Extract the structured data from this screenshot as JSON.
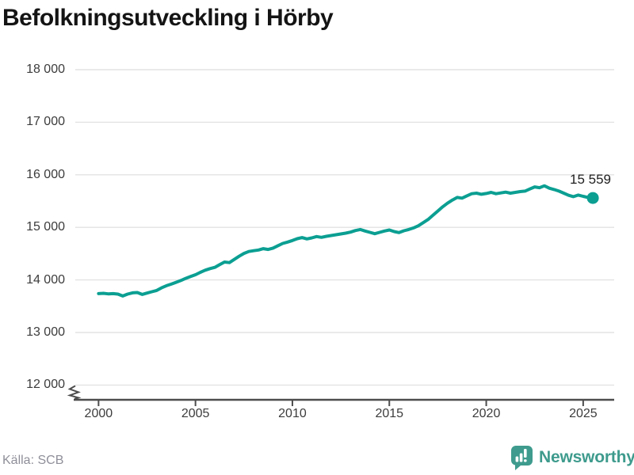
{
  "header": {
    "title": "Befolkningsutveckling i Hörby"
  },
  "chart_data": {
    "type": "line",
    "title": "Befolkningsutveckling i Hörby",
    "xlabel": "",
    "ylabel": "",
    "grid": "horizontal",
    "legend": "none",
    "axis_break_at_bottom": true,
    "xlim": [
      1998.8,
      2026.6
    ],
    "ylim": [
      12000,
      18000
    ],
    "x_ticks": [
      2000,
      2005,
      2010,
      2015,
      2020,
      2025
    ],
    "x_tick_labels": [
      "2000",
      "2005",
      "2010",
      "2015",
      "2020",
      "2025"
    ],
    "y_ticks": [
      12000,
      13000,
      14000,
      15000,
      16000,
      17000,
      18000
    ],
    "y_tick_labels": [
      "12 000",
      "13 000",
      "14 000",
      "15 000",
      "16 000",
      "17 000",
      "18 000"
    ],
    "line_color": "#0b9f92",
    "end_label": "15 559",
    "end_value": 15559,
    "x": [
      2000,
      2000.25,
      2000.5,
      2000.75,
      2001,
      2001.25,
      2001.5,
      2001.75,
      2002,
      2002.25,
      2002.5,
      2002.75,
      2003,
      2003.25,
      2003.5,
      2003.75,
      2004,
      2004.25,
      2004.5,
      2004.75,
      2005,
      2005.25,
      2005.5,
      2005.75,
      2006,
      2006.25,
      2006.5,
      2006.75,
      2007,
      2007.25,
      2007.5,
      2007.75,
      2008,
      2008.25,
      2008.5,
      2008.75,
      2009,
      2009.25,
      2009.5,
      2009.75,
      2010,
      2010.25,
      2010.5,
      2010.75,
      2011,
      2011.25,
      2011.5,
      2011.75,
      2012,
      2012.25,
      2012.5,
      2012.75,
      2013,
      2013.25,
      2013.5,
      2013.75,
      2014,
      2014.25,
      2014.5,
      2014.75,
      2015,
      2015.25,
      2015.5,
      2015.75,
      2016,
      2016.25,
      2016.5,
      2016.75,
      2017,
      2017.25,
      2017.5,
      2017.75,
      2018,
      2018.25,
      2018.5,
      2018.75,
      2019,
      2019.25,
      2019.5,
      2019.75,
      2020,
      2020.25,
      2020.5,
      2020.75,
      2021,
      2021.25,
      2021.5,
      2021.75,
      2022,
      2022.25,
      2022.5,
      2022.75,
      2023,
      2023.25,
      2023.5,
      2023.75,
      2024,
      2024.25,
      2024.5,
      2024.75,
      2025,
      2025.25,
      2025.5
    ],
    "y": [
      13740,
      13745,
      13735,
      13740,
      13730,
      13695,
      13730,
      13755,
      13760,
      13725,
      13750,
      13775,
      13800,
      13850,
      13890,
      13920,
      13955,
      13990,
      14030,
      14065,
      14100,
      14145,
      14185,
      14215,
      14240,
      14290,
      14340,
      14330,
      14390,
      14450,
      14505,
      14540,
      14555,
      14570,
      14595,
      14580,
      14605,
      14650,
      14695,
      14720,
      14750,
      14785,
      14805,
      14780,
      14800,
      14825,
      14810,
      14830,
      14845,
      14860,
      14875,
      14890,
      14910,
      14940,
      14960,
      14930,
      14905,
      14880,
      14905,
      14930,
      14950,
      14920,
      14900,
      14935,
      14960,
      14990,
      15030,
      15090,
      15150,
      15230,
      15310,
      15390,
      15460,
      15520,
      15570,
      15555,
      15600,
      15640,
      15650,
      15630,
      15645,
      15665,
      15640,
      15655,
      15670,
      15650,
      15665,
      15680,
      15690,
      15730,
      15770,
      15755,
      15790,
      15745,
      15720,
      15690,
      15650,
      15610,
      15585,
      15615,
      15590,
      15570,
      15559
    ]
  },
  "footer": {
    "source": "Källa: SCB",
    "brand": "Newsworthy"
  },
  "colors": {
    "line": "#0b9f92",
    "gridline": "#e3e3e3",
    "axis": "#4d4d4d",
    "tick_text": "#3c3c3c",
    "title_text": "#141414",
    "source_text": "#8f8f9a",
    "brand_teal": "#3e9b8d"
  }
}
